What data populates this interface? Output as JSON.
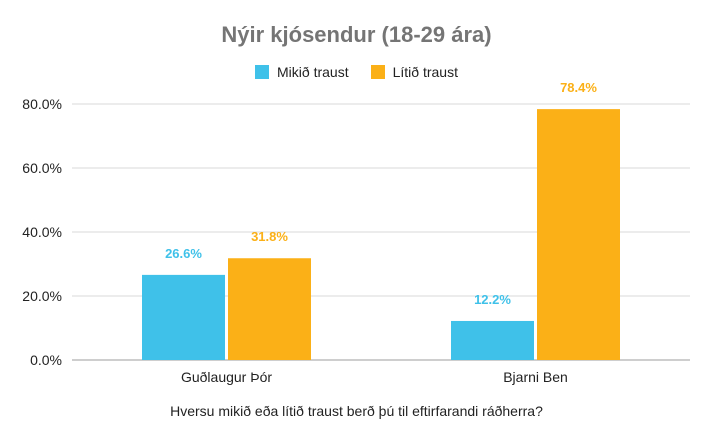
{
  "chart_data": {
    "type": "bar",
    "title": "Nýir kjósendur (18-29 ára)",
    "xlabel": "Hversu mikið eða lítið traust berð þú til eftirfarandi ráðherra?",
    "ylabel": "",
    "categories": [
      "Guðlaugur Þór",
      "Bjarni Ben"
    ],
    "series": [
      {
        "name": "Mikið traust",
        "values": [
          26.6,
          12.2
        ],
        "color": "#3fc1e9"
      },
      {
        "name": "Lítið traust",
        "values": [
          31.8,
          78.4
        ],
        "color": "#fbb017"
      }
    ],
    "ylim": [
      0,
      80
    ],
    "yticks": [
      0,
      20,
      40,
      60,
      80
    ],
    "ytick_labels": [
      "0.0%",
      "20.0%",
      "40.0%",
      "60.0%",
      "80.0%"
    ],
    "data_labels": [
      [
        "26.6%",
        "12.2%"
      ],
      [
        "31.8%",
        "78.4%"
      ]
    ],
    "legend_position": "top",
    "grid": true
  }
}
